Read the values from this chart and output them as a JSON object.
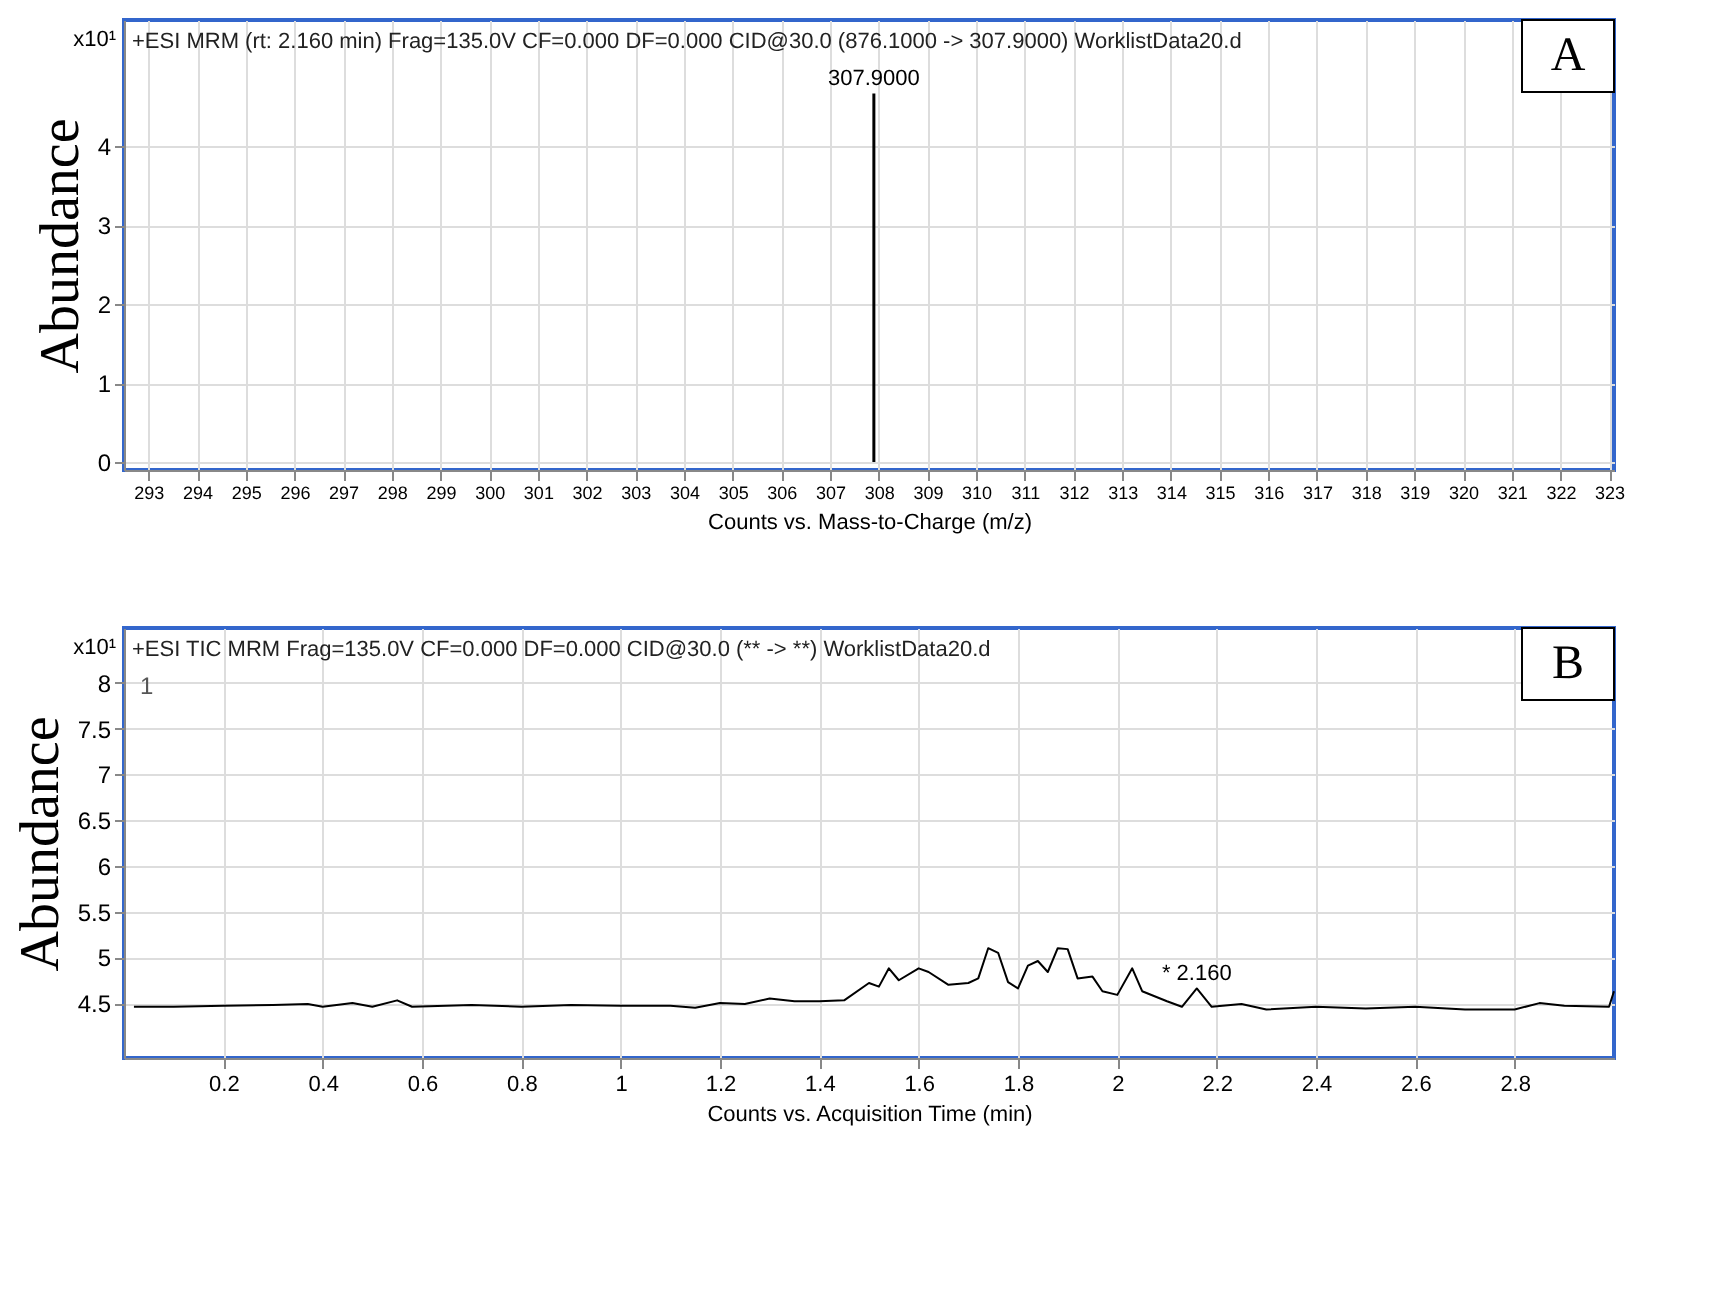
{
  "chart_data": [
    {
      "type": "bar",
      "title": "+ESI MRM (rt: 2.160 min) Frag=135.0V CF=0.000 DF=0.000 CID@30.0 (876.1000 -> 307.9000) WorklistData20.d",
      "xlabel": "Counts vs. Mass-to-Charge (m/z)",
      "ylabel": "Abundance",
      "x": [
        307.9
      ],
      "values": [
        4.67
      ],
      "color": "#000000",
      "xlim": [
        292.5,
        323.1
      ],
      "xticks": [
        293,
        294,
        295,
        296,
        297,
        298,
        299,
        300,
        301,
        302,
        303,
        304,
        305,
        306,
        307,
        308,
        309,
        310,
        311,
        312,
        313,
        314,
        315,
        316,
        317,
        318,
        319,
        320,
        321,
        322,
        323
      ],
      "ylim": [
        -0.1,
        5.6
      ],
      "yticks": [
        0,
        1,
        2,
        3,
        4
      ],
      "grid": true,
      "annotations": [
        "x10¹",
        {
          "text": "307.9000",
          "x": 307.9,
          "y": 4.67
        },
        "A"
      ]
    },
    {
      "type": "line",
      "title": "+ESI TIC MRM Frag=135.0V CF=0.000 DF=0.000 CID@30.0 (** -> **) WorklistData20.d",
      "xlabel": "Counts vs. Acquisition Time (min)",
      "ylabel": "Abundance",
      "x": [
        0.02,
        0.1,
        0.2,
        0.3,
        0.37,
        0.4,
        0.46,
        0.5,
        0.55,
        0.58,
        0.7,
        0.8,
        0.9,
        1.0,
        1.1,
        1.15,
        1.2,
        1.25,
        1.3,
        1.35,
        1.4,
        1.45,
        1.5,
        1.52,
        1.54,
        1.56,
        1.6,
        1.62,
        1.66,
        1.7,
        1.72,
        1.74,
        1.76,
        1.78,
        1.8,
        1.82,
        1.84,
        1.86,
        1.88,
        1.9,
        1.92,
        1.95,
        1.97,
        2.0,
        2.03,
        2.05,
        2.1,
        2.13,
        2.16,
        2.19,
        2.25,
        2.3,
        2.4,
        2.5,
        2.6,
        2.7,
        2.8,
        2.85,
        2.9,
        2.99,
        3.0
      ],
      "values": [
        4.46,
        4.46,
        4.47,
        4.48,
        4.49,
        4.46,
        4.5,
        4.46,
        4.53,
        4.46,
        4.48,
        4.46,
        4.48,
        4.47,
        4.47,
        4.45,
        4.5,
        4.49,
        4.55,
        4.52,
        4.52,
        4.53,
        4.72,
        4.68,
        4.88,
        4.75,
        4.88,
        4.84,
        4.7,
        4.72,
        4.77,
        5.1,
        5.05,
        4.73,
        4.66,
        4.91,
        4.96,
        4.84,
        5.1,
        5.09,
        4.77,
        4.79,
        4.63,
        4.59,
        4.88,
        4.63,
        4.52,
        4.46,
        4.66,
        4.46,
        4.49,
        4.43,
        4.46,
        4.44,
        4.46,
        4.43,
        4.43,
        4.5,
        4.47,
        4.46,
        4.63
      ],
      "color": "#000000",
      "xlim": [
        0,
        3.0
      ],
      "xticks": [
        0.2,
        0.4,
        0.6,
        0.8,
        1,
        1.2,
        1.4,
        1.6,
        1.8,
        2,
        2.2,
        2.4,
        2.6,
        2.8
      ],
      "ylim": [
        3.9,
        8.6
      ],
      "yticks": [
        4.5,
        5,
        5.5,
        6,
        6.5,
        7,
        7.5,
        8
      ],
      "grid": true,
      "annotations": [
        "x10¹",
        "1",
        {
          "text": "* 2.160",
          "x": 2.16,
          "y": 4.66
        },
        "B"
      ]
    }
  ]
}
